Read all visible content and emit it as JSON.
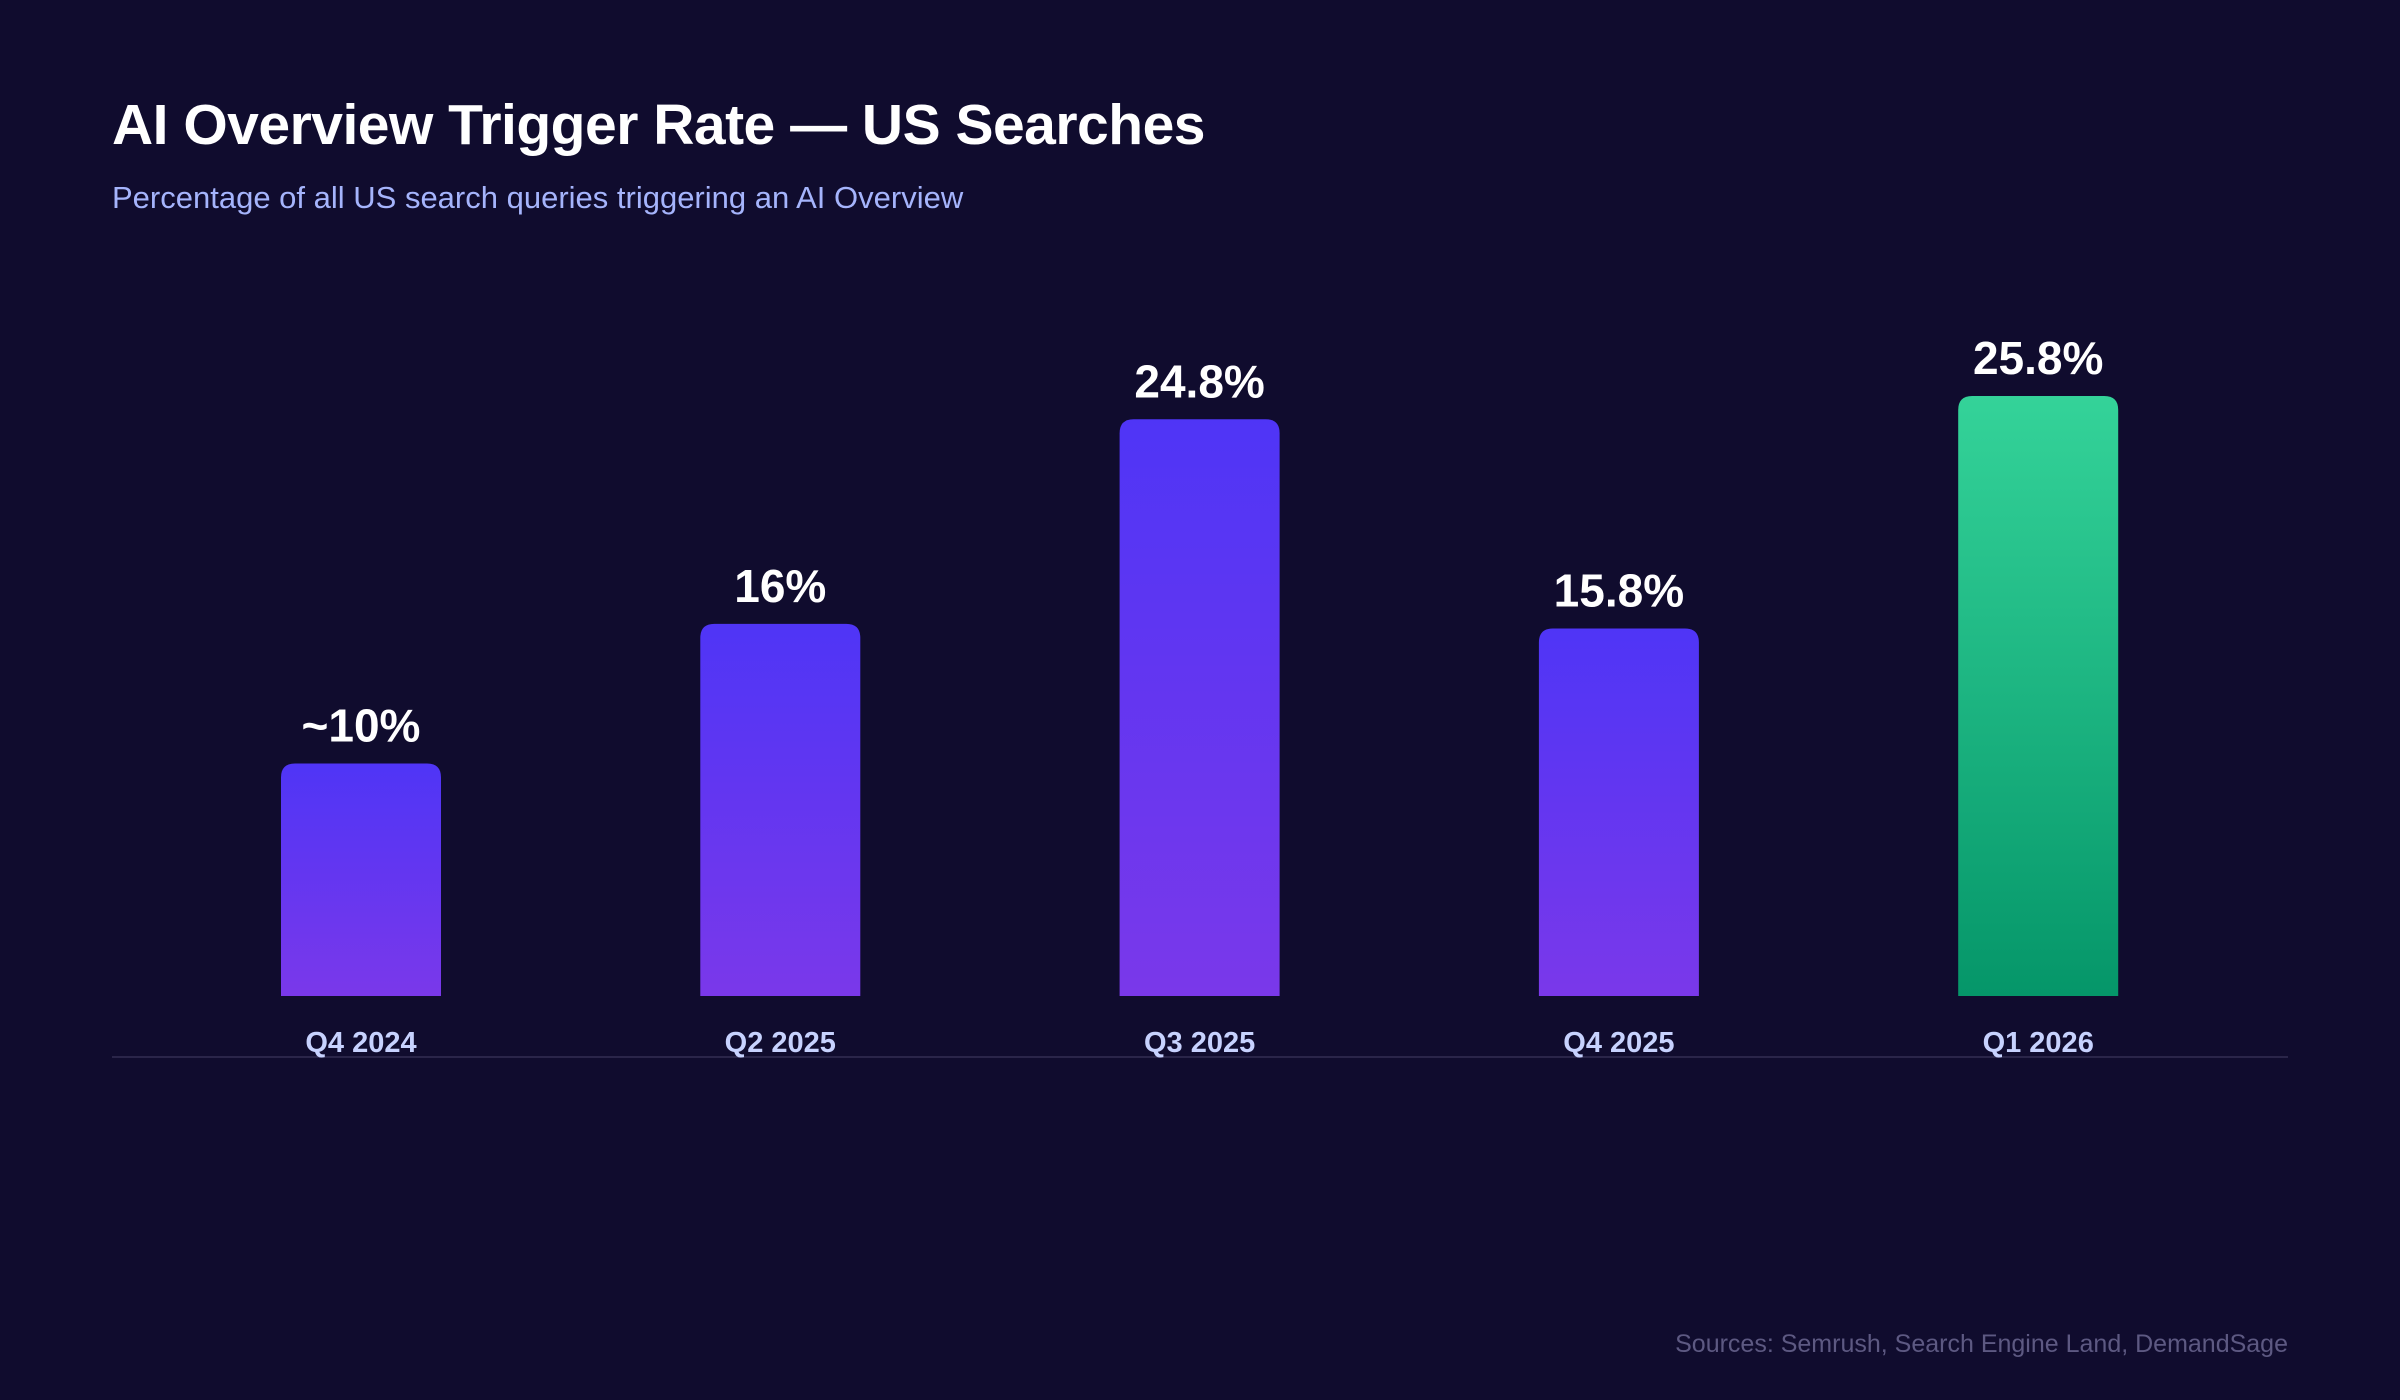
{
  "chart_data": {
    "type": "bar",
    "title": "AI Overview Trigger Rate — US Searches",
    "subtitle": "Percentage of all US search queries triggering an AI Overview",
    "categories": [
      "Q4 2024",
      "Q2 2025",
      "Q3 2025",
      "Q4 2025",
      "Q1 2026"
    ],
    "values": [
      10,
      16,
      24.8,
      15.8,
      25.8
    ],
    "data_labels": [
      "~10%",
      "16%",
      "24.8%",
      "15.8%",
      "25.8%"
    ],
    "highlight_index": 4,
    "grid": false,
    "xlabel": "",
    "ylabel": "",
    "source": "Sources: Semrush, Search Engine Land, DemandSage"
  },
  "colors": {
    "background": "#100c2e",
    "bar_top": "#4f35f6",
    "bar_bottom": "#7a38ea",
    "highlight_top": "#34d399",
    "highlight_bottom": "#059669",
    "axis": "#2a2549",
    "category_label": "#c7d2fe",
    "value_label": "#ffffff"
  }
}
